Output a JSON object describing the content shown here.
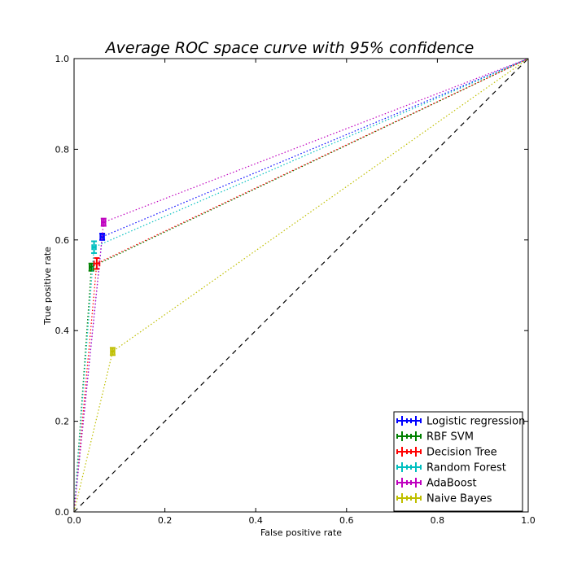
{
  "chart_data": {
    "type": "scatter",
    "title": "Average ROC space curve with 95% confidence",
    "xlabel": "False positive rate",
    "ylabel": "True positive rate",
    "xlim": [
      0.0,
      1.0
    ],
    "ylim": [
      0.0,
      1.0
    ],
    "xticks": [
      "0.0",
      "0.2",
      "0.4",
      "0.6",
      "0.8",
      "1.0"
    ],
    "yticks": [
      "0.0",
      "0.2",
      "0.4",
      "0.6",
      "0.8",
      "1.0"
    ],
    "grid": false,
    "legend_position": "lower-right",
    "diagonal": {
      "x": [
        0,
        1
      ],
      "y": [
        0,
        1
      ],
      "style": "dashed",
      "color": "#000000"
    },
    "series": [
      {
        "name": "Logistic regression",
        "color": "#0000ff",
        "x": [
          0,
          0.062,
          1
        ],
        "y": [
          0,
          0.607,
          1
        ],
        "xerr": 0.004,
        "yerr": 0.007
      },
      {
        "name": "RBF SVM",
        "color": "#008000",
        "x": [
          0,
          0.038,
          1
        ],
        "y": [
          0,
          0.54,
          1
        ],
        "xerr": 0.004,
        "yerr": 0.008
      },
      {
        "name": "Decision Tree",
        "color": "#ff0000",
        "x": [
          0,
          0.05,
          1
        ],
        "y": [
          0,
          0.548,
          1
        ],
        "xerr": 0.006,
        "yerr": 0.012
      },
      {
        "name": "Random Forest",
        "color": "#00bfbf",
        "x": [
          0,
          0.044,
          1
        ],
        "y": [
          0,
          0.584,
          1
        ],
        "xerr": 0.004,
        "yerr": 0.013
      },
      {
        "name": "AdaBoost",
        "color": "#bf00bf",
        "x": [
          0,
          0.065,
          1
        ],
        "y": [
          0,
          0.639,
          1
        ],
        "xerr": 0.004,
        "yerr": 0.008
      },
      {
        "name": "Naive Bayes",
        "color": "#bfbf00",
        "x": [
          0,
          0.085,
          1
        ],
        "y": [
          0,
          0.354,
          1
        ],
        "xerr": 0.004,
        "yerr": 0.008
      }
    ]
  }
}
